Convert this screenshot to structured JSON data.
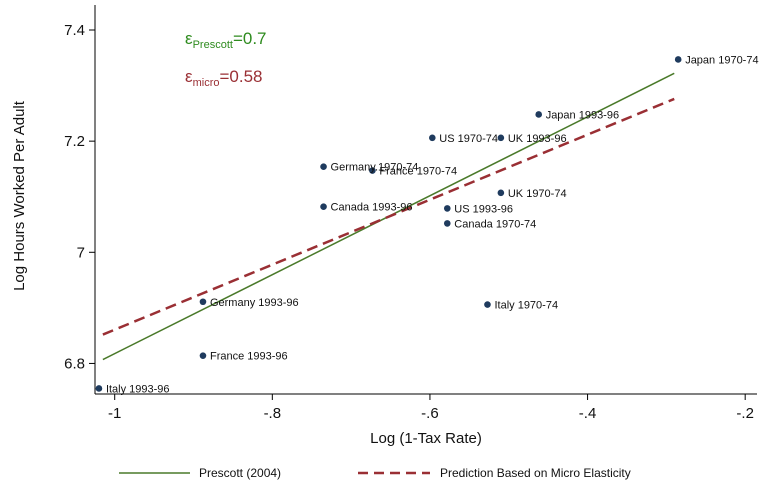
{
  "chart_data": {
    "type": "scatter",
    "xlabel": "Log (1-Tax Rate)",
    "ylabel": "Log Hours Worked Per Adult",
    "xlim": [
      -1.025,
      -0.185
    ],
    "ylim": [
      6.745,
      7.445
    ],
    "x_ticks": [
      -1,
      -0.8,
      -0.6,
      -0.4,
      -0.2
    ],
    "x_tick_labels": [
      "-1",
      "-.8",
      "-.6",
      "-.4",
      "-.2"
    ],
    "y_ticks": [
      6.8,
      7,
      7.2,
      7.4
    ],
    "y_tick_labels": [
      "6.8",
      "7",
      "7.2",
      "7.4"
    ],
    "grid": false,
    "points": [
      {
        "label": "Japan 1970-74",
        "x": -0.285,
        "y": 7.347
      },
      {
        "label": "Japan 1993-96",
        "x": -0.462,
        "y": 7.248
      },
      {
        "label": "US 1970-74",
        "x": -0.597,
        "y": 7.206
      },
      {
        "label": "UK 1993-96",
        "x": -0.51,
        "y": 7.206
      },
      {
        "label": "Germany.1970-74",
        "x": -0.735,
        "y": 7.154
      },
      {
        "label": "France 1970-74",
        "x": -0.673,
        "y": 7.147
      },
      {
        "label": "UK 1970-74",
        "x": -0.51,
        "y": 7.107
      },
      {
        "label": "Canada 1993-96",
        "x": -0.735,
        "y": 7.082
      },
      {
        "label": "US 1993-96",
        "x": -0.578,
        "y": 7.079
      },
      {
        "label": "Canada 1970-74",
        "x": -0.578,
        "y": 7.052
      },
      {
        "label": "Germany 1993-96",
        "x": -0.888,
        "y": 6.911
      },
      {
        "label": "Italy 1970-74",
        "x": -0.527,
        "y": 6.906
      },
      {
        "label": "France 1993-96",
        "x": -0.888,
        "y": 6.814
      },
      {
        "label": "Italy 1993-96",
        "x": -1.02,
        "y": 6.755
      }
    ],
    "series": [
      {
        "name": "Prescott (2004)",
        "style": "solid",
        "color": "#4a7a2a",
        "x": [
          -1.015,
          -0.29
        ],
        "y": [
          6.807,
          7.322
        ]
      },
      {
        "name": "Prediction Based on Micro Elasticity",
        "style": "dashed",
        "color": "#9a2f34",
        "x": [
          -1.015,
          -0.29
        ],
        "y": [
          6.852,
          7.276
        ]
      }
    ],
    "annotations": [
      {
        "symbol": "ε",
        "subscript": "Prescott",
        "value": "=0.7",
        "color": "#2e8b1e"
      },
      {
        "symbol": "ε",
        "subscript": "micro",
        "value": "=0.58",
        "color": "#9a2f34"
      }
    ],
    "legend_position": "bottom",
    "point_color": "#1f3b5e"
  }
}
